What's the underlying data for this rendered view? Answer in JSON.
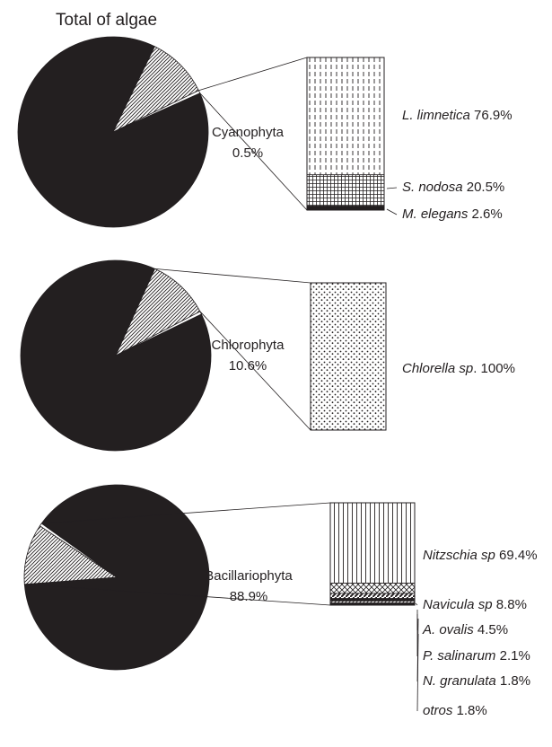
{
  "title": "Total of algae",
  "chart_data": [
    {
      "type": "pie",
      "title": "Total of algae",
      "slices": [
        {
          "name": "Bacillariophyta",
          "value": 88.9
        },
        {
          "name": "Chlorophyta",
          "value": 10.6
        },
        {
          "name": "Cyanophyta",
          "value": 0.5
        }
      ],
      "highlight": "Cyanophyta",
      "label_name": "Cyanophyta",
      "label_value": "0.5%",
      "breakdown": {
        "type": "stacked-bar",
        "segments": [
          {
            "name": "L. limnetica",
            "value": 76.9,
            "label": "76.9%"
          },
          {
            "name": "S. nodosa",
            "value": 20.5,
            "label": "20.5%"
          },
          {
            "name": "M. elegans",
            "value": 2.6,
            "label": "2.6%"
          }
        ]
      }
    },
    {
      "type": "pie",
      "slices": [
        {
          "name": "Bacillariophyta",
          "value": 88.9
        },
        {
          "name": "Chlorophyta",
          "value": 10.6
        },
        {
          "name": "Cyanophyta",
          "value": 0.5
        }
      ],
      "highlight": "Chlorophyta",
      "label_name": "Chlorophyta",
      "label_value": "10.6%",
      "breakdown": {
        "type": "stacked-bar",
        "segments": [
          {
            "name": "Chlorella sp",
            "value": 100,
            "label": "100%"
          }
        ]
      }
    },
    {
      "type": "pie",
      "slices": [
        {
          "name": "Bacillariophyta",
          "value": 88.9
        },
        {
          "name": "Chlorophyta",
          "value": 10.6
        },
        {
          "name": "Cyanophyta",
          "value": 0.5
        }
      ],
      "highlight": "Bacillariophyta",
      "label_name": "Bacillariophyta",
      "label_value": "88.9%",
      "breakdown": {
        "type": "stacked-bar",
        "segments": [
          {
            "name": "Nitzschia sp",
            "value": 69.4,
            "label": "69.4%"
          },
          {
            "name": "Navicula sp",
            "value": 8.8,
            "label": "8.8%"
          },
          {
            "name": "A. ovalis",
            "value": 4.5,
            "label": "4.5%"
          },
          {
            "name": "P. salinarum",
            "value": 2.1,
            "label": "2.1%"
          },
          {
            "name": "N. granulata",
            "value": 1.8,
            "label": "1.8%"
          },
          {
            "name": "otros",
            "value": 1.8,
            "label": "1.8%"
          }
        ]
      }
    }
  ],
  "colors": {
    "Bacillariophyta": "#231f20",
    "Chlorophyta": "#cfcfcf",
    "Cyanophyta": "#ffffff",
    "ink": "#231f20"
  }
}
